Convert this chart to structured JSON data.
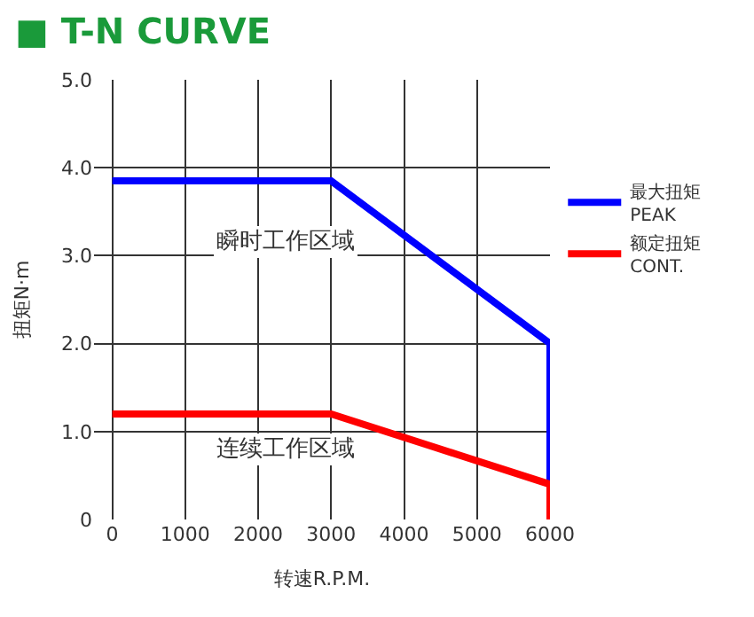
{
  "chart_data": {
    "type": "line",
    "title": "■ T-N CURVE",
    "xlabel": "转速R.P.M.",
    "ylabel": "扭矩N·m",
    "series": [
      {
        "name": "最大扭矩\nPEAK",
        "color": "#0000ff",
        "x": [
          0,
          3000,
          6000,
          6000
        ],
        "values": [
          3.85,
          3.85,
          2.0,
          0.4
        ]
      },
      {
        "name": "额定扭矩\nCONT.",
        "color": "#ff0000",
        "x": [
          0,
          3000,
          6000,
          6000
        ],
        "values": [
          1.2,
          1.2,
          0.4,
          0
        ]
      }
    ],
    "xlim": [
      -250,
      6000
    ],
    "xticks": [
      0,
      1000,
      2000,
      3000,
      4000,
      5000,
      6000
    ],
    "ylim": [
      0,
      5
    ],
    "yticks": [
      0,
      {
        "value": 1,
        "label": "1.0"
      },
      {
        "value": 2,
        "label": "2.0"
      },
      {
        "value": 3,
        "label": "3.0"
      },
      {
        "value": 4,
        "label": "4.0"
      },
      {
        "value": 5,
        "label": "5.0"
      }
    ],
    "annotations": [
      "瞬时工作区域",
      "连续工作区域"
    ],
    "grid": true,
    "legend": "right",
    "marker": "none",
    "line_style": "solid"
  }
}
